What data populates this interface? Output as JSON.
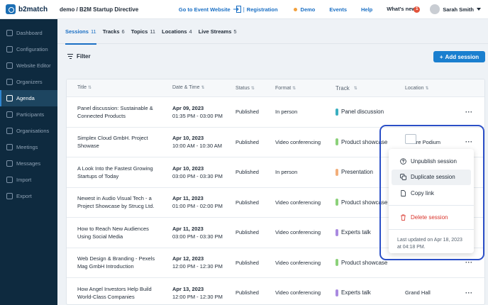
{
  "app": {
    "brand": "b2match",
    "breadcrumb": "demo / B2M Startup Directive"
  },
  "topnav": {
    "event_website": "Go to Event Website",
    "registration": "Registration",
    "demo": "Demo",
    "events": "Events",
    "help": "Help",
    "whats_new": "What's new",
    "whats_new_count": "1",
    "user_name": "Sarah Smith"
  },
  "sidebar": {
    "items": [
      {
        "label": "Dashboard",
        "icon": "dashboard-icon"
      },
      {
        "label": "Configuration",
        "icon": "gear-icon"
      },
      {
        "label": "Website Editor",
        "icon": "edit-icon"
      },
      {
        "label": "Organizers",
        "icon": "people-icon"
      },
      {
        "label": "Agenda",
        "icon": "calendar-icon",
        "active": true
      },
      {
        "label": "Participants",
        "icon": "user-icon"
      },
      {
        "label": "Organisations",
        "icon": "building-icon"
      },
      {
        "label": "Meetings",
        "icon": "meetings-icon"
      },
      {
        "label": "Messages",
        "icon": "chat-icon"
      },
      {
        "label": "Import",
        "icon": "import-icon"
      },
      {
        "label": "Export",
        "icon": "export-icon"
      }
    ]
  },
  "tabs": [
    {
      "label": "Sessions",
      "count": "11",
      "active": true
    },
    {
      "label": "Tracks",
      "count": "6"
    },
    {
      "label": "Topics",
      "count": "11"
    },
    {
      "label": "Locations",
      "count": "4"
    },
    {
      "label": "Live Streams",
      "count": "5"
    }
  ],
  "toolbar": {
    "filter_label": "Filter",
    "add_session_label": "Add session"
  },
  "table": {
    "headers": {
      "title": "Title",
      "datetime": "Date & Time",
      "status": "Status",
      "format": "Format",
      "track": "Track",
      "location": "Location"
    },
    "rows": [
      {
        "title": "Panel discussion: Sustainable & Connected Products",
        "date": "Apr 09, 2023",
        "time": "01:35 PM - 03:00 PM",
        "status": "Published",
        "format": "In person",
        "track": "Panel discussion",
        "track_color": "#3aafc0",
        "location": ""
      },
      {
        "title": "Simplex Cloud GmbH. Project Showase",
        "date": "Apr 10, 2023",
        "time": "10:00 AM - 10:30 AM",
        "status": "Published",
        "format": "Video conferencing",
        "track": "Product showcase",
        "track_color": "#8cd17a",
        "location": "Centre Podium"
      },
      {
        "title": "A Look Into the Fastest Growing Startups of Today",
        "date": "Apr 10, 2023",
        "time": "03:00 PM - 03:30 PM",
        "status": "Published",
        "format": "In person",
        "track": "Presentation",
        "track_color": "#f2ae7a",
        "location": ""
      },
      {
        "title": "Newest in Audio Visual Tech - a Project Showcase by Strucg Ltd.",
        "date": "Apr 11, 2023",
        "time": "01:00 PM - 02:00 PM",
        "status": "Published",
        "format": "Video conferencing",
        "track": "Product showcase",
        "track_color": "#8cd17a",
        "location": ""
      },
      {
        "title": "How to Reach New Audiences Using Social Media",
        "date": "Apr 11, 2023",
        "time": "03:00 PM - 03:30 PM",
        "status": "Published",
        "format": "Video conferencing",
        "track": "Experts talk",
        "track_color": "#a98ae0",
        "location": ""
      },
      {
        "title": "Web Design & Branding - Pexels Mag GmbH Introduction",
        "date": "Apr 12, 2023",
        "time": "12:00 PM - 12:30 PM",
        "status": "Published",
        "format": "Video conferencing",
        "track": "Product showcase",
        "track_color": "#8cd17a",
        "location": ""
      },
      {
        "title": "How Angel Investors Help Build World-Class Companies",
        "date": "Apr 13, 2023",
        "time": "12:00 PM - 12:30 PM",
        "status": "Published",
        "format": "Video conferencing",
        "track": "Experts talk",
        "track_color": "#a98ae0",
        "location": "Grand Hall"
      }
    ]
  },
  "popup": {
    "unpublish": "Unpublish session",
    "duplicate": "Duplicate session",
    "copy_link": "Copy link",
    "delete": "Delete session",
    "updated_note": "Last updated on Apr 18, 2023 at 04:18 PM."
  }
}
